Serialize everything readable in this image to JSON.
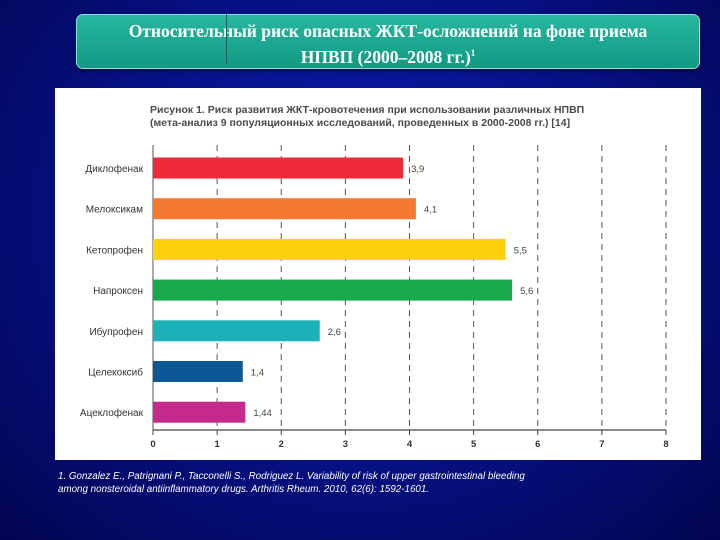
{
  "slide": {
    "title_line1": "Относительный риск опасных ЖКТ-осложнений на фоне приема",
    "title_line2": "НПВП (2000–2008 гг.)",
    "title_sup": "1",
    "footnote_line1": "1. Gonzalez E., Patrignani P., Tacconelli S., Rodriguez L. Variability of risk of upper gastrointestinal bleeding",
    "footnote_line2": "among nonsteroidal antiinflammatory drugs. Arthritis Rheum. 2010, 62(6): 1592-1601."
  },
  "chart_data": {
    "type": "bar",
    "orientation": "horizontal",
    "title_line1": "Рисунок 1. Риск развития ЖКТ-кровотечения при использовании различных НПВП",
    "title_line2": "(мета-анализ 9 популяционных исследований, проведенных в 2000-2008 гг.) [14]",
    "categories": [
      "Диклофенак",
      "Мелоксикам",
      "Кетопрофен",
      "Напроксен",
      "Ибупрофен",
      "Целекоксиб",
      "Ацеклофенак"
    ],
    "values": [
      3.9,
      4.1,
      5.5,
      5.6,
      2.6,
      1.4,
      1.44
    ],
    "value_labels": [
      "3,9",
      "4,1",
      "5,5",
      "5,6",
      "2,6",
      "1,4",
      "1,44"
    ],
    "colors": [
      "#ee2a3a",
      "#f47a2f",
      "#fdd10f",
      "#19a84a",
      "#1cb0b8",
      "#0d5796",
      "#c42a8c"
    ],
    "xlim": [
      0,
      8
    ],
    "xticks": [
      "0",
      "1",
      "2",
      "3",
      "4",
      "5",
      "6",
      "7",
      "8"
    ],
    "grid": "dashed-vertical"
  }
}
